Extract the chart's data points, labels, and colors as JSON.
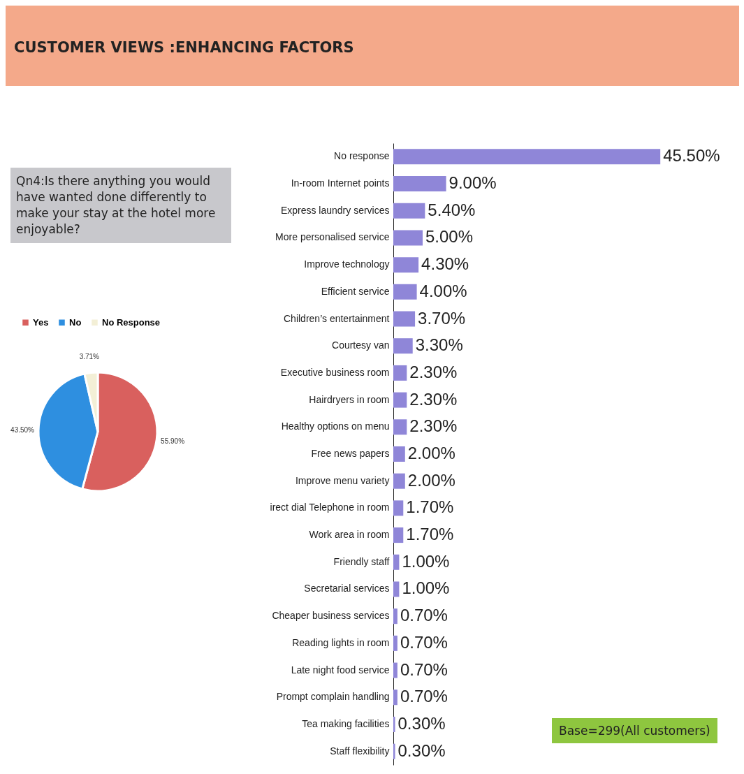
{
  "chart_data": [
    {
      "type": "pie",
      "title": "CUSTOMER VIEWS :ENHANCING FACTORS",
      "subtitle": "Qn4:Is there anything you would have wanted done differently to make your stay at the hotel more enjoyable?",
      "categories": [
        "Yes",
        "No",
        "No Response"
      ],
      "values": [
        55.9,
        43.5,
        3.71
      ],
      "value_labels": [
        "55.90%",
        "43.50%",
        "3.71%"
      ],
      "colors": [
        "#d9605e",
        "#2e8fe0",
        "#f3efd6"
      ],
      "legend": "top"
    },
    {
      "type": "bar",
      "orientation": "horizontal",
      "tick_labels": "y",
      "legend": false,
      "color": "#8f86d8",
      "categories": [
        "No response",
        "In-room Internet points",
        "Express laundry services",
        "More personalised service",
        "Improve technology",
        "Efficient service",
        "Children’s entertainment",
        "Courtesy van",
        "Executive business room",
        "Hairdryers in room",
        "Healthy options on menu",
        "Free news papers",
        "Improve menu variety",
        "irect dial Telephone in room",
        "Work area in room",
        "Friendly staff",
        "Secretarial services",
        "Cheaper business services",
        "Reading lights in room",
        "Late night food service",
        "Prompt complain handling",
        "Tea making facilities",
        "Staff flexibility"
      ],
      "values": [
        45.5,
        9.0,
        5.4,
        5.0,
        4.3,
        4.0,
        3.7,
        3.3,
        2.3,
        2.3,
        2.3,
        2.0,
        2.0,
        1.7,
        1.7,
        1.0,
        1.0,
        0.7,
        0.7,
        0.7,
        0.7,
        0.3,
        0.3
      ],
      "value_labels": [
        "45.50%",
        "9.00%",
        "5.40%",
        "5.00%",
        "4.30%",
        "4.00%",
        "3.70%",
        "3.30%",
        "2.30%",
        "2.30%",
        "2.30%",
        "2.00%",
        "2.00%",
        "1.70%",
        "1.70%",
        "1.00%",
        "1.00%",
        "0.70%",
        "0.70%",
        "0.70%",
        "0.70%",
        "0.30%",
        "0.30%"
      ],
      "annotations": [
        "Base=299(All customers)"
      ]
    }
  ]
}
